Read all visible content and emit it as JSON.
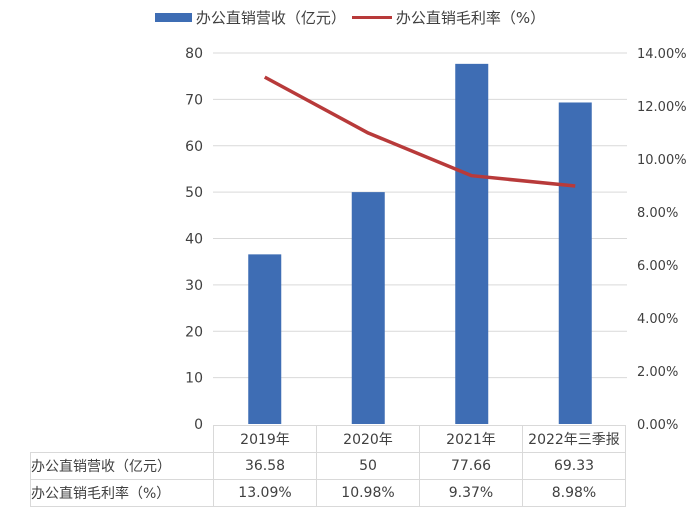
{
  "legend": [
    {
      "label": "办公直销营收（亿元）",
      "type": "bar",
      "color": "#3e6db4"
    },
    {
      "label": "办公直销毛利率（%）",
      "type": "line",
      "color": "#b83a3a"
    }
  ],
  "table": {
    "headers": [
      "2019年",
      "2020年",
      "2021年",
      "2022年三季报"
    ],
    "rows": [
      {
        "label": "办公直销营收（亿元）",
        "values": [
          "36.58",
          "50",
          "77.66",
          "69.33"
        ]
      },
      {
        "label": "办公直销毛利率（%）",
        "values": [
          "13.09%",
          "10.98%",
          "9.37%",
          "8.98%"
        ]
      }
    ]
  },
  "chart_data": {
    "type": "bar",
    "title": "",
    "categories": [
      "2019年",
      "2020年",
      "2021年",
      "2022年三季报"
    ],
    "series": [
      {
        "name": "办公直销营收（亿元）",
        "type": "bar",
        "axis": "left",
        "color": "#3e6db4",
        "values": [
          36.58,
          50,
          77.66,
          69.33
        ]
      },
      {
        "name": "办公直销毛利率（%）",
        "type": "line",
        "axis": "right",
        "color": "#b83a3a",
        "values": [
          13.09,
          10.98,
          9.37,
          8.98
        ]
      }
    ],
    "y_left": {
      "ticks": [
        "0",
        "10",
        "20",
        "30",
        "40",
        "50",
        "60",
        "70",
        "80"
      ],
      "ylim": [
        0,
        80
      ]
    },
    "y_right": {
      "ticks": [
        "0.00%",
        "2.00%",
        "4.00%",
        "6.00%",
        "8.00%",
        "10.00%",
        "12.00%",
        "14.00%"
      ],
      "ylim": [
        0,
        14
      ]
    },
    "grid": true,
    "legend_position": "top",
    "data_table": true
  }
}
